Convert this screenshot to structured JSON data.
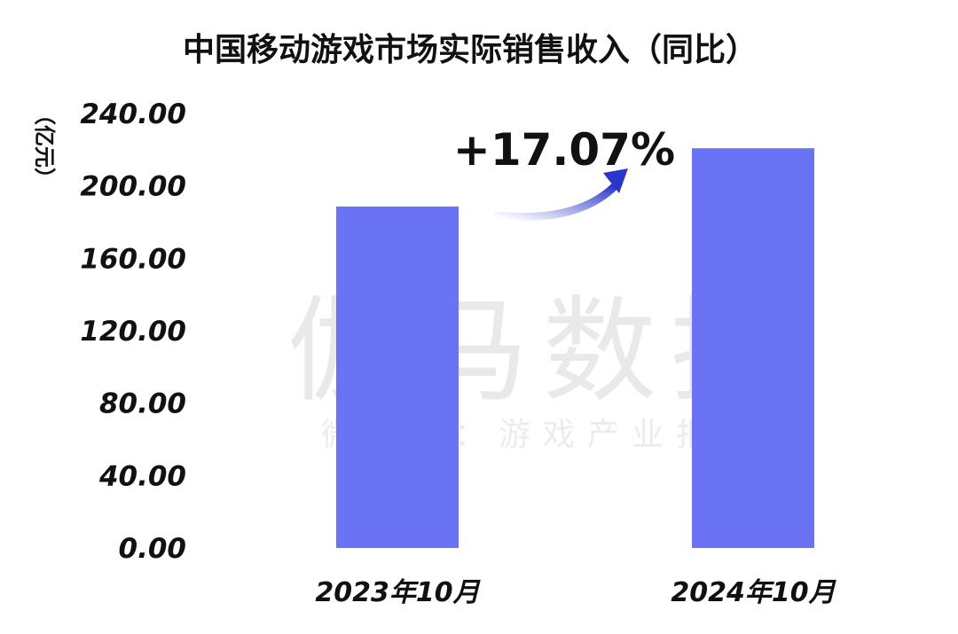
{
  "chart_data": {
    "type": "bar",
    "title": "中国移动游戏市场实际销售收入（同比）",
    "ylabel": "（亿元）",
    "xlabel": "",
    "categories": [
      "2023年10月",
      "2024年10月"
    ],
    "series": [
      {
        "values": [
          188.62,
          220.82
        ]
      }
    ],
    "ylim": [
      0,
      240
    ],
    "yticks": [
      "0.00",
      "40.00",
      "80.00",
      "120.00",
      "160.00",
      "200.00",
      "240.00"
    ],
    "annotation": "+17.07%",
    "grid": false,
    "legend": "none",
    "bar_color": "#6B73F5",
    "arrow_color": "#2B35C9"
  },
  "watermark": {
    "main": "伽马数据",
    "sub": "微信号：游戏产业报告"
  }
}
